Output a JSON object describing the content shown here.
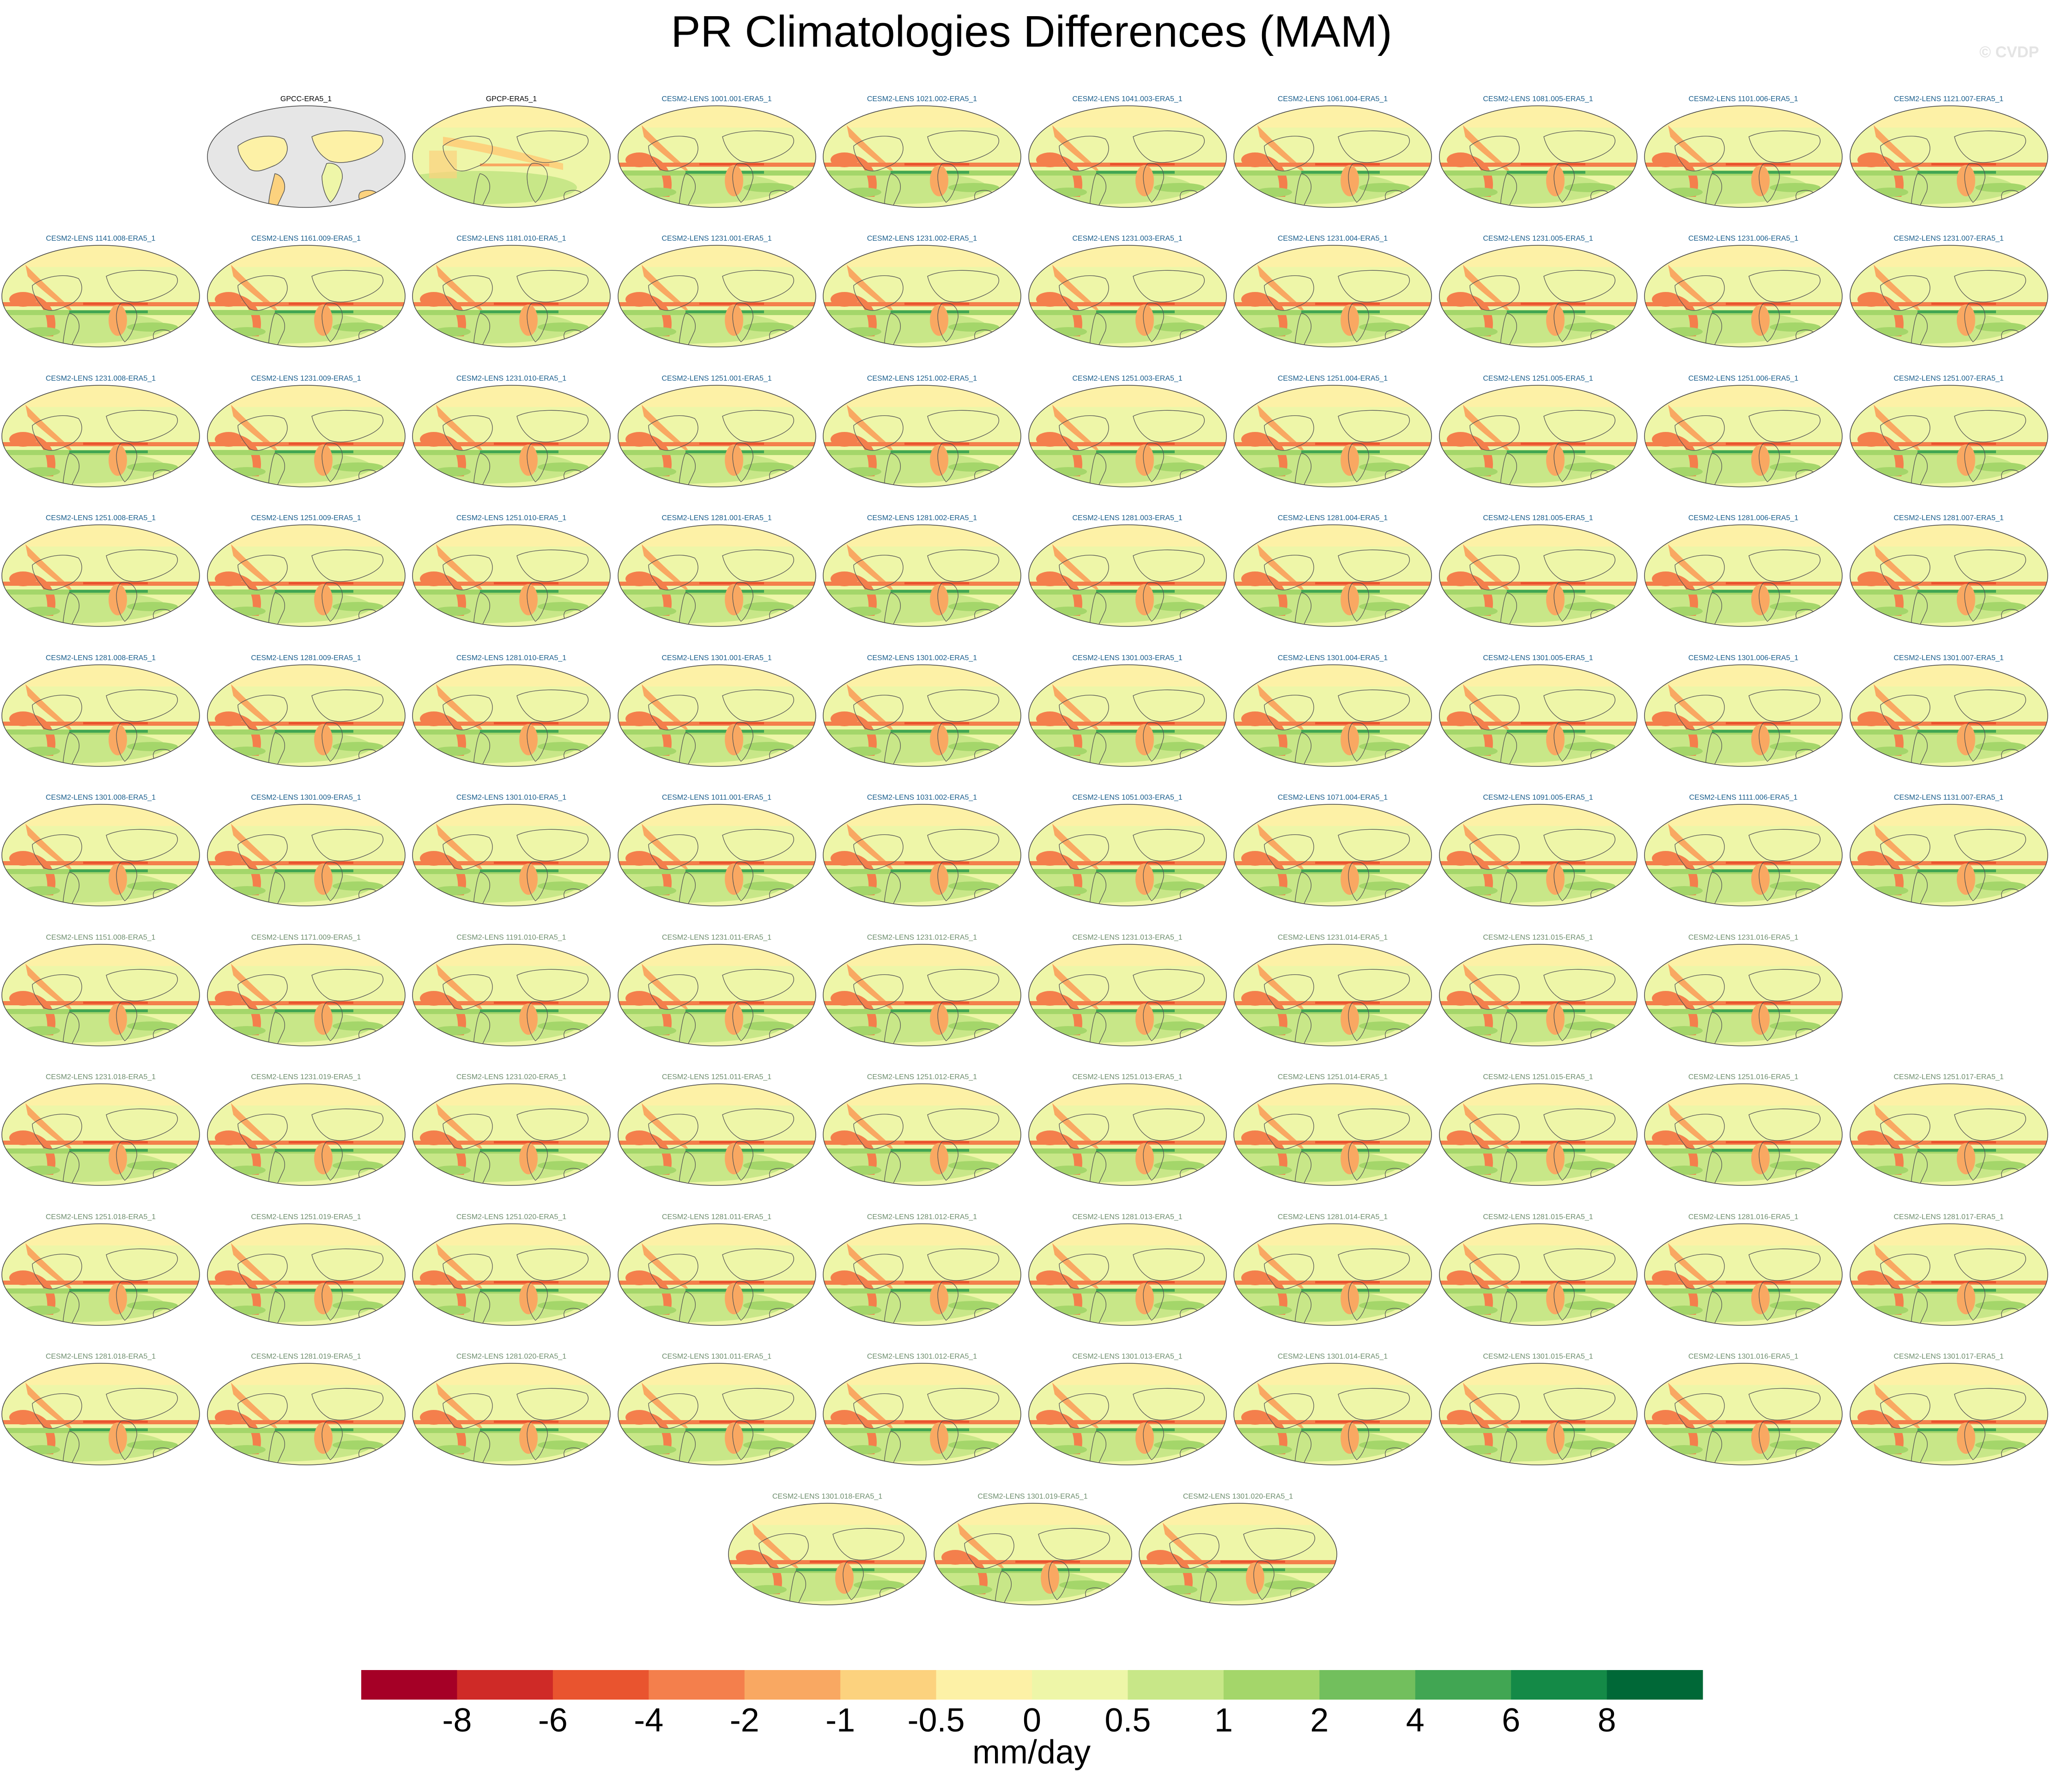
{
  "title": "PR Climatologies Differences (MAM)",
  "credit": "© CVDP",
  "colors": {
    "title_obs": "#000000",
    "title_model_a": "#1a5e8c",
    "title_model_b": "#6e8e6e",
    "land_obs": "#e6e6e6",
    "coast": "#555555"
  },
  "chart_data": {
    "type": "heatmap",
    "panel_rows": [
      [
        "GPCC-ERA5_1",
        "GPCP-ERA5_1",
        "CESM2-LENS 1001.001-ERA5_1",
        "CESM2-LENS 1021.002-ERA5_1",
        "CESM2-LENS 1041.003-ERA5_1",
        "CESM2-LENS 1061.004-ERA5_1",
        "CESM2-LENS 1081.005-ERA5_1",
        "CESM2-LENS 1101.006-ERA5_1",
        "CESM2-LENS 1121.007-ERA5_1"
      ],
      [
        "CESM2-LENS 1141.008-ERA5_1",
        "CESM2-LENS 1161.009-ERA5_1",
        "CESM2-LENS 1181.010-ERA5_1",
        "CESM2-LENS 1231.001-ERA5_1",
        "CESM2-LENS 1231.002-ERA5_1",
        "CESM2-LENS 1231.003-ERA5_1",
        "CESM2-LENS 1231.004-ERA5_1",
        "CESM2-LENS 1231.005-ERA5_1",
        "CESM2-LENS 1231.006-ERA5_1",
        "CESM2-LENS 1231.007-ERA5_1"
      ],
      [
        "CESM2-LENS 1231.008-ERA5_1",
        "CESM2-LENS 1231.009-ERA5_1",
        "CESM2-LENS 1231.010-ERA5_1",
        "CESM2-LENS 1251.001-ERA5_1",
        "CESM2-LENS 1251.002-ERA5_1",
        "CESM2-LENS 1251.003-ERA5_1",
        "CESM2-LENS 1251.004-ERA5_1",
        "CESM2-LENS 1251.005-ERA5_1",
        "CESM2-LENS 1251.006-ERA5_1",
        "CESM2-LENS 1251.007-ERA5_1"
      ],
      [
        "CESM2-LENS 1251.008-ERA5_1",
        "CESM2-LENS 1251.009-ERA5_1",
        "CESM2-LENS 1251.010-ERA5_1",
        "CESM2-LENS 1281.001-ERA5_1",
        "CESM2-LENS 1281.002-ERA5_1",
        "CESM2-LENS 1281.003-ERA5_1",
        "CESM2-LENS 1281.004-ERA5_1",
        "CESM2-LENS 1281.005-ERA5_1",
        "CESM2-LENS 1281.006-ERA5_1",
        "CESM2-LENS 1281.007-ERA5_1"
      ],
      [
        "CESM2-LENS 1281.008-ERA5_1",
        "CESM2-LENS 1281.009-ERA5_1",
        "CESM2-LENS 1281.010-ERA5_1",
        "CESM2-LENS 1301.001-ERA5_1",
        "CESM2-LENS 1301.002-ERA5_1",
        "CESM2-LENS 1301.003-ERA5_1",
        "CESM2-LENS 1301.004-ERA5_1",
        "CESM2-LENS 1301.005-ERA5_1",
        "CESM2-LENS 1301.006-ERA5_1",
        "CESM2-LENS 1301.007-ERA5_1"
      ],
      [
        "CESM2-LENS 1301.008-ERA5_1",
        "CESM2-LENS 1301.009-ERA5_1",
        "CESM2-LENS 1301.010-ERA5_1",
        "CESM2-LENS 1011.001-ERA5_1",
        "CESM2-LENS 1031.002-ERA5_1",
        "CESM2-LENS 1051.003-ERA5_1",
        "CESM2-LENS 1071.004-ERA5_1",
        "CESM2-LENS 1091.005-ERA5_1",
        "CESM2-LENS 1111.006-ERA5_1",
        "CESM2-LENS 1131.007-ERA5_1"
      ],
      [
        "CESM2-LENS 1151.008-ERA5_1",
        "CESM2-LENS 1171.009-ERA5_1",
        "CESM2-LENS 1191.010-ERA5_1",
        "CESM2-LENS 1231.011-ERA5_1",
        "CESM2-LENS 1231.012-ERA5_1",
        "CESM2-LENS 1231.013-ERA5_1",
        "CESM2-LENS 1231.014-ERA5_1",
        "CESM2-LENS 1231.015-ERA5_1",
        "CESM2-LENS 1231.016-ERA5_1"
      ],
      [
        "CESM2-LENS 1231.018-ERA5_1",
        "CESM2-LENS 1231.019-ERA5_1",
        "CESM2-LENS 1231.020-ERA5_1",
        "CESM2-LENS 1251.011-ERA5_1",
        "CESM2-LENS 1251.012-ERA5_1",
        "CESM2-LENS 1251.013-ERA5_1",
        "CESM2-LENS 1251.014-ERA5_1",
        "CESM2-LENS 1251.015-ERA5_1",
        "CESM2-LENS 1251.016-ERA5_1",
        "CESM2-LENS 1251.017-ERA5_1"
      ],
      [
        "CESM2-LENS 1251.018-ERA5_1",
        "CESM2-LENS 1251.019-ERA5_1",
        "CESM2-LENS 1251.020-ERA5_1",
        "CESM2-LENS 1281.011-ERA5_1",
        "CESM2-LENS 1281.012-ERA5_1",
        "CESM2-LENS 1281.013-ERA5_1",
        "CESM2-LENS 1281.014-ERA5_1",
        "CESM2-LENS 1281.015-ERA5_1",
        "CESM2-LENS 1281.016-ERA5_1",
        "CESM2-LENS 1281.017-ERA5_1"
      ],
      [
        "CESM2-LENS 1281.018-ERA5_1",
        "CESM2-LENS 1281.019-ERA5_1",
        "CESM2-LENS 1281.020-ERA5_1",
        "CESM2-LENS 1301.011-ERA5_1",
        "CESM2-LENS 1301.012-ERA5_1",
        "CESM2-LENS 1301.013-ERA5_1",
        "CESM2-LENS 1301.014-ERA5_1",
        "CESM2-LENS 1301.015-ERA5_1",
        "CESM2-LENS 1301.016-ERA5_1",
        "CESM2-LENS 1301.017-ERA5_1"
      ],
      [
        "CESM2-LENS 1301.018-ERA5_1",
        "CESM2-LENS 1301.019-ERA5_1",
        "CESM2-LENS 1301.020-ERA5_1"
      ]
    ],
    "colorbar": {
      "units": "mm/day",
      "tick_labels": [
        "-8",
        "-6",
        "-4",
        "-2",
        "-1",
        "-0.5",
        "0",
        "0.5",
        "1",
        "2",
        "4",
        "6",
        "8"
      ],
      "colors": [
        "#a50026",
        "#cf2a27",
        "#e9542f",
        "#f47f4c",
        "#f9a862",
        "#fcd27e",
        "#fdf1a6",
        "#eef6a8",
        "#c8e788",
        "#a4d66a",
        "#72bf5d",
        "#41a653",
        "#148a47",
        "#006837"
      ]
    }
  }
}
